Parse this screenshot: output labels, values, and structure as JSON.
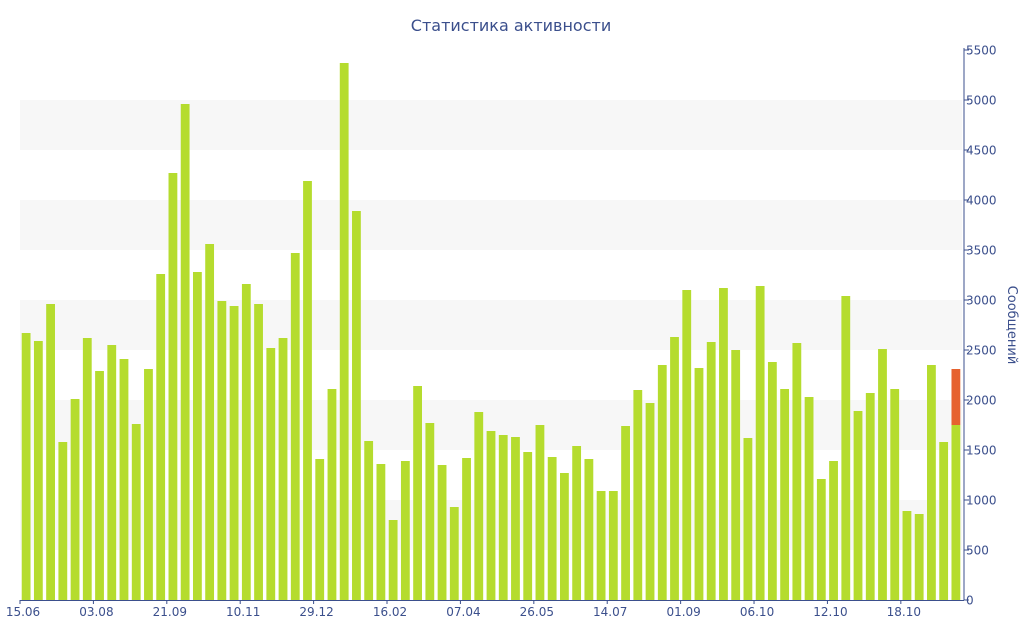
{
  "chart_data": {
    "type": "bar",
    "title": "Статистика активности",
    "xlabel": "",
    "ylabel": "Сообщений",
    "ylim": [
      0,
      5500
    ],
    "yticks": [
      0,
      500,
      1000,
      1500,
      2000,
      2500,
      3000,
      3500,
      4000,
      4500,
      5000,
      5500
    ],
    "y_axis_side": "right",
    "grid": "alternating horizontal bands",
    "x_tick_labels": [
      {
        "index": 0,
        "label": "15.06"
      },
      {
        "index": 6,
        "label": "03.08"
      },
      {
        "index": 12,
        "label": "21.09"
      },
      {
        "index": 18,
        "label": "10.11"
      },
      {
        "index": 24,
        "label": "29.12"
      },
      {
        "index": 30,
        "label": "16.02"
      },
      {
        "index": 36,
        "label": "07.04"
      },
      {
        "index": 42,
        "label": "26.05"
      },
      {
        "index": 48,
        "label": "14.07"
      },
      {
        "index": 54,
        "label": "01.09"
      },
      {
        "index": 60,
        "label": "06.10"
      },
      {
        "index": 66,
        "label": "12.10"
      },
      {
        "index": 72,
        "label": "18.10"
      }
    ],
    "series": [
      {
        "color": "#b5dc2e",
        "values": [
          2670,
          2590,
          2960,
          1580,
          2010,
          2620,
          2290,
          2550,
          2410,
          1760,
          2310,
          3260,
          4270,
          4960,
          3280,
          3560,
          2990,
          2940,
          3160,
          2960,
          2520,
          2620,
          3470,
          4190,
          1410,
          2110,
          5370,
          3890,
          1590,
          1360,
          800,
          1390,
          2140,
          1770,
          1350,
          930,
          1420,
          1880,
          1690,
          1650,
          1630,
          1480,
          1750,
          1430,
          1270,
          1540,
          1410,
          1090,
          1090,
          1740,
          2100,
          1970,
          2350,
          2630,
          3100,
          2320,
          2580,
          3120,
          2500,
          1620,
          3140,
          2380,
          2110,
          2570,
          2030,
          1210,
          1390,
          3040,
          1890,
          2070,
          2510,
          2110,
          890,
          860,
          2350,
          1580,
          1750
        ]
      },
      {
        "color": "#e6622f",
        "values": [
          0,
          0,
          0,
          0,
          0,
          0,
          0,
          0,
          0,
          0,
          0,
          0,
          0,
          0,
          0,
          0,
          0,
          0,
          0,
          0,
          0,
          0,
          0,
          0,
          0,
          0,
          0,
          0,
          0,
          0,
          0,
          0,
          0,
          0,
          0,
          0,
          0,
          0,
          0,
          0,
          0,
          0,
          0,
          0,
          0,
          0,
          0,
          0,
          0,
          0,
          0,
          0,
          0,
          0,
          0,
          0,
          0,
          0,
          0,
          0,
          0,
          0,
          0,
          0,
          0,
          0,
          0,
          0,
          0,
          0,
          0,
          0,
          0,
          0,
          0,
          0,
          560
        ]
      }
    ],
    "colors": {
      "text": "#3b4f8c",
      "band": "#f7f7f7",
      "axis": "#3b4f8c"
    }
  }
}
